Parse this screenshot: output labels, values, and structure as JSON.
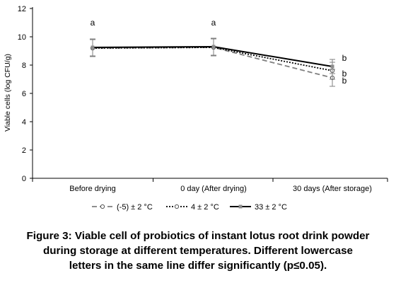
{
  "chart_data": {
    "type": "line",
    "ylabel": "Viable cells (log CFU/g)",
    "xlabel": "",
    "ylim": [
      0,
      12
    ],
    "yticks": [
      0,
      2,
      4,
      6,
      8,
      10,
      12
    ],
    "categories": [
      "Before drying",
      "0 day (After drying)",
      "30 days (After storage)"
    ],
    "grid": false,
    "legend_position": "bottom",
    "series": [
      {
        "name": "(-5) ± 2 °C",
        "values": [
          9.2,
          9.25,
          7.1
        ],
        "errors": [
          0.6,
          0.6,
          0.6
        ],
        "color": "#7f7f7f",
        "dash": "dashed",
        "marker": "open-circle"
      },
      {
        "name": "4 ± 2 °C",
        "values": [
          9.2,
          9.25,
          7.6
        ],
        "errors": [
          0.6,
          0.6,
          0.6
        ],
        "color": "#000000",
        "dash": "dotted",
        "marker": "open-circle"
      },
      {
        "name": "33 ± 2 °C",
        "values": [
          9.25,
          9.3,
          7.9
        ],
        "errors": [
          0.6,
          0.6,
          0.5
        ],
        "color": "#000000",
        "dash": "solid",
        "marker": "filled-square"
      }
    ],
    "annotations": [
      {
        "category": 0,
        "y": 11.0,
        "text": "a"
      },
      {
        "category": 1,
        "y": 11.0,
        "text": "a"
      },
      {
        "category": 2,
        "y": 8.5,
        "text": "b"
      },
      {
        "category": 2,
        "y": 7.4,
        "text": "b"
      },
      {
        "category": 2,
        "y": 6.9,
        "text": "b"
      }
    ]
  },
  "caption": {
    "lines": [
      "Figure 3: Viable cell of probiotics of instant lotus root drink powder",
      "during storage at different temperatures. Different lowercase",
      "letters in the same line differ significantly (p≤0.05)."
    ]
  }
}
